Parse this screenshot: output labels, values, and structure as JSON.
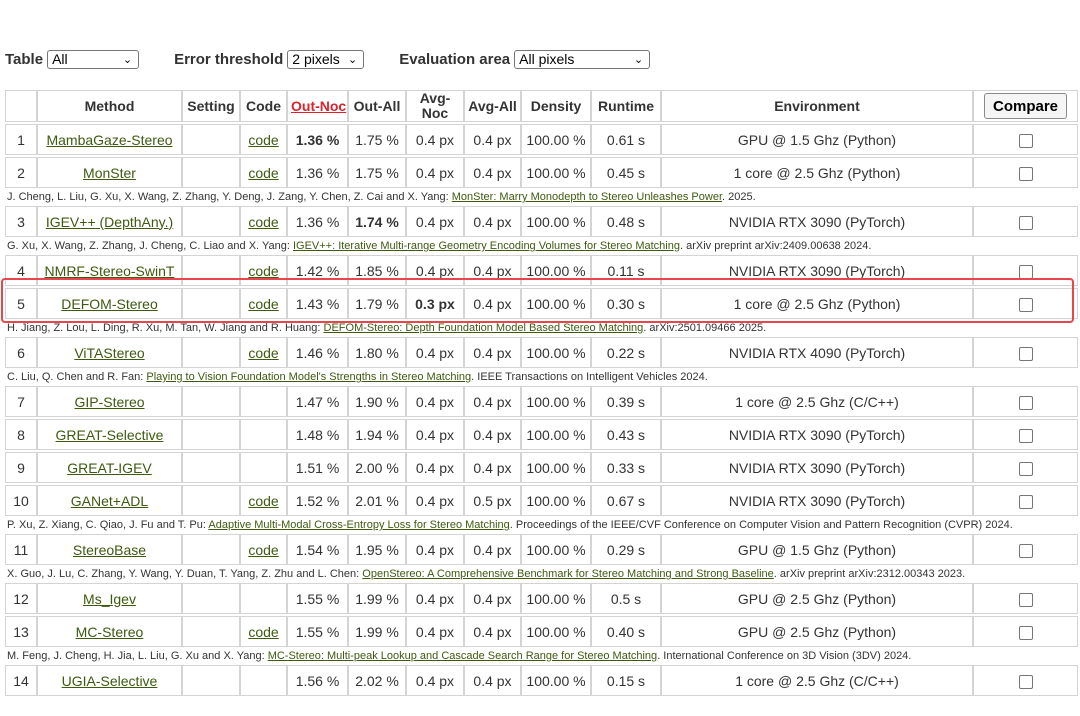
{
  "controls": {
    "table_label": "Table",
    "table_value": "All",
    "error_label": "Error threshold",
    "error_value": "2 pixels",
    "area_label": "Evaluation area",
    "area_value": "All pixels"
  },
  "headers": {
    "rank": "",
    "method": "Method",
    "setting": "Setting",
    "code": "Code",
    "out_noc": "Out-Noc",
    "out_all": "Out-All",
    "avg_noc": "Avg-Noc",
    "avg_all": "Avg-All",
    "density": "Density",
    "runtime": "Runtime",
    "environment": "Environment",
    "compare": "Compare"
  },
  "rows": [
    {
      "rank": "1",
      "method": "MambaGaze-Stereo",
      "code": "code",
      "out_noc": "1.36 %",
      "out_all": "1.75 %",
      "avg_noc": "0.4 px",
      "avg_all": "0.4 px",
      "density": "100.00 %",
      "runtime": "0.61 s",
      "env": "GPU @ 1.5 Ghz (Python)",
      "cite_pre": "",
      "cite_link": "",
      "cite_post": ""
    },
    {
      "rank": "2",
      "method": "MonSter",
      "code": "code",
      "out_noc": "1.36 %",
      "out_all": "1.75 %",
      "avg_noc": "0.4 px",
      "avg_all": "0.4 px",
      "density": "100.00 %",
      "runtime": "0.45 s",
      "env": "1 core @ 2.5 Ghz (Python)",
      "cite_pre": "J. Cheng, L. Liu, G. Xu, X. Wang, Z. Zhang, Y. Deng, J. Zang, Y. Chen, Z. Cai and X. Yang: ",
      "cite_link": "MonSter: Marry Monodepth to Stereo Unleashes Power",
      "cite_post": ". 2025."
    },
    {
      "rank": "3",
      "method": "IGEV++ (DepthAny.)",
      "code": "code",
      "out_noc": "1.36 %",
      "out_all": "1.74 %",
      "avg_noc": "0.4 px",
      "avg_all": "0.4 px",
      "density": "100.00 %",
      "runtime": "0.48 s",
      "env": "NVIDIA RTX 3090 (PyTorch)",
      "cite_pre": "G. Xu, X. Wang, Z. Zhang, J. Cheng, C. Liao and X. Yang: ",
      "cite_link": "IGEV++: Iterative Multi-range Geometry Encoding Volumes for Stereo Matching",
      "cite_post": ". arXiv preprint arXiv:2409.00638 2024."
    },
    {
      "rank": "4",
      "method": "NMRF-Stereo-SwinT",
      "code": "code",
      "out_noc": "1.42 %",
      "out_all": "1.85 %",
      "avg_noc": "0.4 px",
      "avg_all": "0.4 px",
      "density": "100.00 %",
      "runtime": "0.11 s",
      "env": "NVIDIA RTX 3090 (PyTorch)",
      "cite_pre": "",
      "cite_link": "",
      "cite_post": ""
    },
    {
      "rank": "5",
      "method": "DEFOM-Stereo",
      "code": "code",
      "out_noc": "1.43 %",
      "out_all": "1.79 %",
      "avg_noc": "0.3 px",
      "avg_all": "0.4 px",
      "density": "100.00 %",
      "runtime": "0.30 s",
      "env": "1 core @ 2.5 Ghz (Python)",
      "cite_pre": "H. Jiang, Z. Lou, L. Ding, R. Xu, M. Tan, W. Jiang and R. Huang: ",
      "cite_link": "DEFOM-Stereo: Depth Foundation Model Based Stereo Matching",
      "cite_post": ". arXiv:2501.09466 2025."
    },
    {
      "rank": "6",
      "method": "ViTAStereo",
      "code": "code",
      "out_noc": "1.46 %",
      "out_all": "1.80 %",
      "avg_noc": "0.4 px",
      "avg_all": "0.4 px",
      "density": "100.00 %",
      "runtime": "0.22 s",
      "env": "NVIDIA RTX 4090 (PyTorch)",
      "cite_pre": "C. Liu, Q. Chen and R. Fan: ",
      "cite_link": "Playing to Vision Foundation Model's Strengths in Stereo Matching",
      "cite_post": ". IEEE Transactions on Intelligent Vehicles 2024."
    },
    {
      "rank": "7",
      "method": "GIP-Stereo",
      "code": "",
      "out_noc": "1.47 %",
      "out_all": "1.90 %",
      "avg_noc": "0.4 px",
      "avg_all": "0.4 px",
      "density": "100.00 %",
      "runtime": "0.39 s",
      "env": "1 core @ 2.5 Ghz (C/C++)",
      "cite_pre": "",
      "cite_link": "",
      "cite_post": ""
    },
    {
      "rank": "8",
      "method": "GREAT-Selective",
      "code": "",
      "out_noc": "1.48 %",
      "out_all": "1.94 %",
      "avg_noc": "0.4 px",
      "avg_all": "0.4 px",
      "density": "100.00 %",
      "runtime": "0.43 s",
      "env": "NVIDIA RTX 3090 (PyTorch)",
      "cite_pre": "",
      "cite_link": "",
      "cite_post": ""
    },
    {
      "rank": "9",
      "method": "GREAT-IGEV",
      "code": "",
      "out_noc": "1.51 %",
      "out_all": "2.00 %",
      "avg_noc": "0.4 px",
      "avg_all": "0.4 px",
      "density": "100.00 %",
      "runtime": "0.33 s",
      "env": "NVIDIA RTX 3090 (PyTorch)",
      "cite_pre": "",
      "cite_link": "",
      "cite_post": ""
    },
    {
      "rank": "10",
      "method": "GANet+ADL",
      "code": "code",
      "out_noc": "1.52 %",
      "out_all": "2.01 %",
      "avg_noc": "0.4 px",
      "avg_all": "0.5 px",
      "density": "100.00 %",
      "runtime": "0.67 s",
      "env": "NVIDIA RTX 3090 (PyTorch)",
      "cite_pre": "P. Xu, Z. Xiang, C. Qiao, J. Fu and T. Pu: ",
      "cite_link": "Adaptive Multi-Modal Cross-Entropy Loss for Stereo Matching",
      "cite_post": ". Proceedings of the IEEE/CVF Conference on Computer Vision and Pattern Recognition (CVPR) 2024."
    },
    {
      "rank": "11",
      "method": "StereoBase",
      "code": "code",
      "out_noc": "1.54 %",
      "out_all": "1.95 %",
      "avg_noc": "0.4 px",
      "avg_all": "0.4 px",
      "density": "100.00 %",
      "runtime": "0.29 s",
      "env": "GPU @ 1.5 Ghz (Python)",
      "cite_pre": "X. Guo, J. Lu, C. Zhang, Y. Wang, Y. Duan, T. Yang, Z. Zhu and L. Chen: ",
      "cite_link": "OpenStereo: A Comprehensive Benchmark for Stereo Matching and Strong Baseline",
      "cite_post": ". arXiv preprint arXiv:2312.00343 2023."
    },
    {
      "rank": "12",
      "method": "Ms_Igev",
      "code": "",
      "out_noc": "1.55 %",
      "out_all": "1.99 %",
      "avg_noc": "0.4 px",
      "avg_all": "0.4 px",
      "density": "100.00 %",
      "runtime": "0.5 s",
      "env": "GPU @ 2.5 Ghz (Python)",
      "cite_pre": "",
      "cite_link": "",
      "cite_post": ""
    },
    {
      "rank": "13",
      "method": "MC-Stereo",
      "code": "code",
      "out_noc": "1.55 %",
      "out_all": "1.99 %",
      "avg_noc": "0.4 px",
      "avg_all": "0.4 px",
      "density": "100.00 %",
      "runtime": "0.40 s",
      "env": "GPU @ 2.5 Ghz (Python)",
      "cite_pre": "M. Feng, J. Cheng, H. Jia, L. Liu, G. Xu and X. Yang: ",
      "cite_link": "MC-Stereo: Multi-peak Lookup and Cascade Search Range for Stereo Matching",
      "cite_post": ". International Conference on 3D Vision (3DV) 2024."
    },
    {
      "rank": "14",
      "method": "UGIA-Selective",
      "code": "",
      "out_noc": "1.56 %",
      "out_all": "2.02 %",
      "avg_noc": "0.4 px",
      "avg_all": "0.4 px",
      "density": "100.00 %",
      "runtime": "0.15 s",
      "env": "1 core @ 2.5 Ghz (C/C++)",
      "cite_pre": "",
      "cite_link": "",
      "cite_post": ""
    }
  ],
  "bold_cells": {
    "0.out_noc": true,
    "2.out_all": true,
    "4.avg_noc": true
  },
  "highlight_row": "5",
  "colors": {
    "link": "#3d5a0f",
    "sorted_header": "#d9232e",
    "highlight_border": "#e8464b"
  }
}
